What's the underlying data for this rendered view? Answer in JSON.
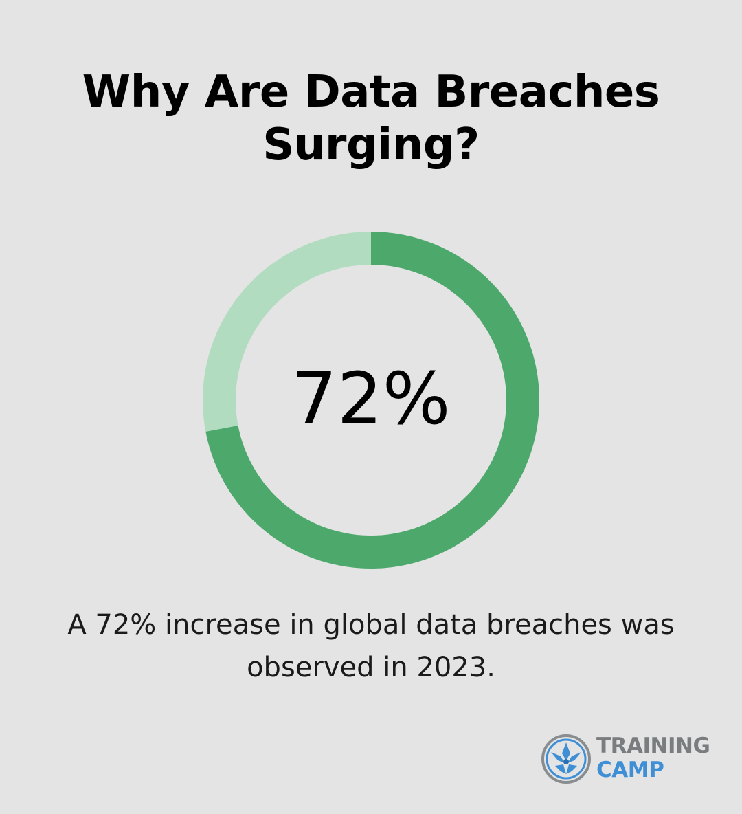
{
  "title": "Why Are Data Breaches Surging?",
  "stat": {
    "display": "72%",
    "caption": "A 72% increase in global data breaches was observed in 2023."
  },
  "chart_data": {
    "type": "pie",
    "variant": "donut",
    "values": [
      72,
      28
    ],
    "colors": [
      "#4da86c",
      "#b1dcc0"
    ],
    "center_label": "72%"
  },
  "logo": {
    "line1": "TRAINING",
    "line2": "CAMP",
    "colors": {
      "line1": "#7a7d80",
      "line2": "#3f8fd6"
    }
  },
  "colors": {
    "background": "#e3e4e3",
    "accent": "#4da86c",
    "accent_light": "#b1dcc0"
  }
}
